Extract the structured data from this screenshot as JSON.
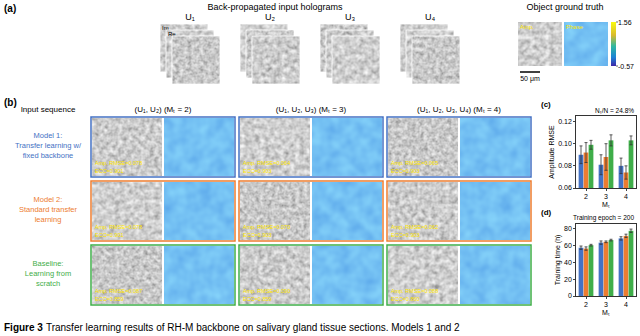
{
  "caption": {
    "label": "Figure 3",
    "text": "Transfer learning results of RH-M backbone on salivary gland tissue sections. Models 1 and 2"
  },
  "panel_a": {
    "label": "(a)",
    "title": "Back-propagated input holograms",
    "holograms": [
      "U₁",
      "U₂",
      "U₃",
      "U₄"
    ],
    "hologram_parts": [
      "Im",
      "Re"
    ],
    "ground_truth": {
      "title": "Object ground truth",
      "images": [
        "Amp.",
        "Phase"
      ],
      "scale_bar": "50 μm",
      "colorbar": {
        "range": [
          -0.57,
          1.56
        ],
        "ticks": [
          -0.57,
          1.56
        ]
      }
    }
  },
  "panel_b": {
    "label": "(b)",
    "header": "Input sequence",
    "columns": [
      "(U₁, U₂) (Mₜ = 2)",
      "(U₁, U₂, U₃) (Mₜ = 3)",
      "(U₁, U₂, U₃, U₄) (Mₜ = 4)"
    ],
    "rows": [
      {
        "label": [
          "Model 1:",
          "Transfer learning w/",
          "fixed backbone"
        ],
        "color": "#4472c4",
        "cells": [
          [
            "Amp. RMSE=0.078",
            "ECC=0.901"
          ],
          [
            "Amp. RMSE=0.064",
            "ECC=0.903"
          ],
          [
            "Amp. RMSE=0.065",
            "ECC=0.903"
          ]
        ]
      },
      {
        "label": [
          "Model 2:",
          "Standard transfer",
          "learning"
        ],
        "color": "#ed7d31",
        "cells": [
          [
            "Amp. RMSE=0.078",
            "ECC=0.901"
          ],
          [
            "Amp. RMSE=0.070",
            "ECC=0.903"
          ],
          [
            "Amp. RMSE=0.062",
            "ECC=0.903"
          ]
        ]
      },
      {
        "label": [
          "Baseline:",
          "Learning from",
          "scratch"
        ],
        "color": "#3fae49",
        "cells": [
          [
            "Amp. RMSE=0.087",
            "ECC=0.859"
          ],
          [
            "Amp. RMSE=0.090",
            "ECC=0.859"
          ],
          [
            "Amp. RMSE=0.088",
            "ECC=0.860"
          ]
        ]
      }
    ]
  },
  "chart_data": [
    {
      "type": "bar",
      "label": "(c)",
      "annotation": "Nₜ/N = 24.8%",
      "x_label": "Mₜ",
      "y_label": "Amplitude RMSE",
      "categories": [
        "2",
        "3",
        "4"
      ],
      "series": [
        {
          "color": "#4472c4",
          "values": [
            0.09,
            0.081,
            0.08
          ],
          "errors": [
            0.008,
            0.009,
            0.007
          ]
        },
        {
          "color": "#ed7d31",
          "values": [
            0.092,
            0.088,
            0.074
          ],
          "errors": [
            0.009,
            0.012,
            0.006
          ]
        },
        {
          "color": "#3fae49",
          "values": [
            0.099,
            0.103,
            0.103
          ],
          "errors": [
            0.004,
            0.005,
            0.004
          ]
        }
      ],
      "ylim": [
        0.06,
        0.125
      ],
      "yticks": [
        0.06,
        0.08,
        {
          "value": 0.1,
          "label": "0.10"
        },
        0.12
      ],
      "grid": false
    },
    {
      "type": "bar",
      "label": "(d)",
      "annotation": "Training epoch = 200",
      "x_label": "Mₜ",
      "y_label": "Training time (h)",
      "categories": [
        "2",
        "3",
        "4"
      ],
      "series": [
        {
          "color": "#4472c4",
          "values": [
            57,
            63,
            68
          ],
          "errors": [
            2,
            2,
            2
          ]
        },
        {
          "color": "#ed7d31",
          "values": [
            56,
            64,
            71
          ],
          "errors": [
            2,
            1,
            2
          ]
        },
        {
          "color": "#3fae49",
          "values": [
            60,
            66,
            77
          ],
          "errors": [
            1,
            1,
            2
          ]
        }
      ],
      "ylim": [
        0,
        85
      ],
      "yticks": [
        0,
        20,
        40,
        60,
        80
      ],
      "grid": false
    }
  ]
}
